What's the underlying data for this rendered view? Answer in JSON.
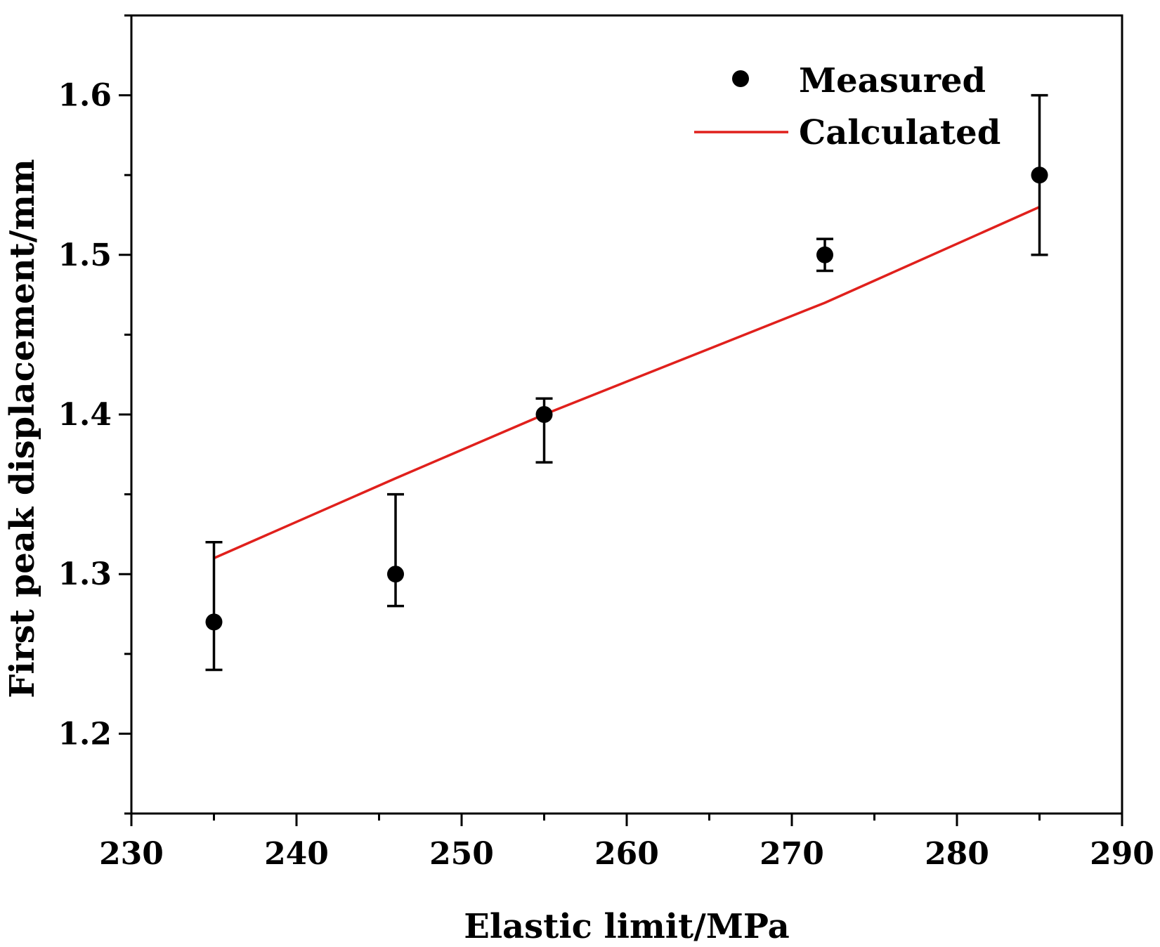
{
  "chart_data": {
    "type": "scatter",
    "title": "",
    "xlabel": "Elastic limit/MPa",
    "ylabel": "First peak displacement/mm",
    "xlim": [
      230,
      290
    ],
    "ylim": [
      1.15,
      1.65
    ],
    "x_ticks": [
      230,
      240,
      250,
      260,
      270,
      280,
      290
    ],
    "x_tick_labels": [
      "230",
      "240",
      "250",
      "260",
      "270",
      "280",
      "290"
    ],
    "y_ticks": [
      1.2,
      1.3,
      1.4,
      1.5,
      1.6
    ],
    "y_tick_labels": [
      "1.2",
      "1.3",
      "1.4",
      "1.5",
      "1.6"
    ],
    "grid": false,
    "legend_position": "top-right",
    "series": [
      {
        "name": "Measured",
        "kind": "scatter",
        "color": "#000000",
        "x": [
          235,
          246,
          255,
          272,
          285
        ],
        "y": [
          1.27,
          1.3,
          1.4,
          1.5,
          1.55
        ],
        "err_low": [
          1.24,
          1.28,
          1.37,
          1.49,
          1.5
        ],
        "err_high": [
          1.32,
          1.35,
          1.41,
          1.51,
          1.6
        ]
      },
      {
        "name": "Calculated",
        "kind": "line",
        "color": "#e0201c",
        "x": [
          235,
          246,
          255,
          272,
          285
        ],
        "y": [
          1.31,
          1.36,
          1.4,
          1.47,
          1.53
        ]
      }
    ]
  }
}
